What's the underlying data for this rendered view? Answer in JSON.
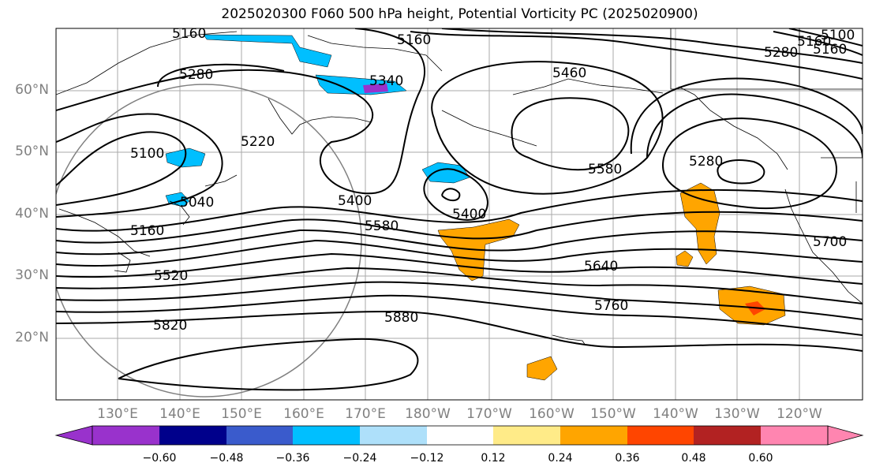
{
  "title": "2025020300 F060 500 hPa height, Potential Vorticity PC (2025020900)",
  "lat_labels": [
    "60°N",
    "50°N",
    "40°N",
    "30°N",
    "20°N"
  ],
  "lon_labels": [
    "130°E",
    "140°E",
    "150°E",
    "160°E",
    "170°E",
    "180°W",
    "170°W",
    "160°W",
    "150°W",
    "140°W",
    "130°W",
    "120°W"
  ],
  "contour_labels": [
    "5160",
    "5160",
    "5280",
    "5340",
    "5460",
    "5160",
    "5100",
    "5220",
    "5580",
    "5280",
    "5400",
    "5400",
    "5040",
    "5160",
    "5580",
    "5520",
    "5640",
    "5760",
    "5820",
    "5880",
    "5700",
    "5280",
    "5160",
    "5100"
  ],
  "colorbar": {
    "ticks": [
      "−0.60",
      "−0.48",
      "−0.36",
      "−0.24",
      "−0.12",
      "0.12",
      "0.24",
      "0.36",
      "0.48",
      "0.60"
    ],
    "colors": [
      "#9932cc",
      "#00008b",
      "#3a5bcc",
      "#00bfff",
      "#aee0fa",
      "#ffffff",
      "#ffeb88",
      "#ffa500",
      "#ff4500",
      "#b22222",
      "#ff85b0"
    ]
  }
}
